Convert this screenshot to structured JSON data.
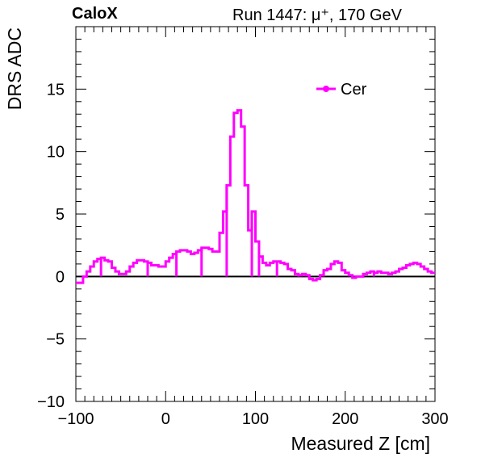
{
  "header": {
    "brand": "CaloX",
    "run_info": "Run 1447:   μ⁺, 170 GeV"
  },
  "chart_data": {
    "type": "line",
    "style": "step histogram",
    "xlabel": "Measured Z [cm]",
    "ylabel": "DRS ADC",
    "xlim": [
      -100,
      300
    ],
    "ylim": [
      -10,
      20
    ],
    "x_ticks": [
      -100,
      0,
      100,
      200,
      300
    ],
    "y_ticks": [
      -10,
      -5,
      0,
      5,
      10,
      15
    ],
    "grid": false,
    "legend_position": "top-right",
    "zero_line": true,
    "colors": {
      "series": "#ff00ff",
      "axis": "#000000",
      "zero_line": "#000000"
    },
    "series": [
      {
        "name": "Cer",
        "x": [
          -100,
          -96,
          -92,
          -88,
          -84,
          -80,
          -76,
          -72,
          -68,
          -64,
          -60,
          -56,
          -52,
          -48,
          -44,
          -40,
          -36,
          -32,
          -28,
          -24,
          -20,
          -16,
          -12,
          -8,
          -4,
          0,
          4,
          8,
          12,
          16,
          20,
          24,
          28,
          32,
          36,
          40,
          44,
          48,
          52,
          56,
          60,
          64,
          68,
          72,
          76,
          80,
          84,
          88,
          92,
          96,
          100,
          104,
          108,
          112,
          116,
          120,
          124,
          128,
          132,
          136,
          140,
          144,
          148,
          152,
          156,
          160,
          164,
          168,
          172,
          176,
          180,
          184,
          188,
          192,
          196,
          200,
          204,
          208,
          212,
          216,
          220,
          224,
          228,
          232,
          236,
          240,
          244,
          248,
          252,
          256,
          260,
          264,
          268,
          272,
          276,
          280,
          284,
          288,
          292,
          296
        ],
        "values": [
          -0.5,
          -0.5,
          0,
          0.4,
          0.8,
          1.2,
          1.4,
          1.5,
          1.3,
          1.2,
          0.7,
          0.4,
          0.2,
          0.2,
          0.4,
          0.8,
          1.1,
          1.3,
          1.3,
          1.2,
          1.1,
          0.9,
          0.9,
          0.8,
          0.8,
          1.2,
          1.5,
          1.8,
          2.0,
          2.1,
          2.1,
          2.0,
          1.8,
          1.9,
          2.1,
          2.3,
          2.3,
          2.2,
          2.0,
          2.0,
          3.5,
          5.2,
          7.3,
          11.2,
          13.1,
          13.3,
          12.0,
          7.3,
          3.7,
          5.2,
          2.8,
          1.6,
          1.1,
          0.9,
          1.1,
          1.2,
          1.2,
          1.1,
          1.0,
          0.6,
          0.5,
          0.2,
          0.1,
          0.2,
          0.1,
          -0.2,
          -0.3,
          -0.2,
          0.1,
          0.5,
          0.6,
          1.0,
          1.2,
          1.1,
          0.5,
          0.3,
          0.1,
          -0.1,
          0,
          0,
          0.2,
          0.3,
          0.4,
          0.3,
          0.4,
          0.3,
          0.3,
          0.2,
          0.3,
          0.4,
          0.6,
          0.7,
          0.9,
          1.0,
          1.1,
          1.0,
          0.8,
          0.6,
          0.4,
          0.3
        ],
        "gap_x": [
          -72,
          -20,
          12,
          40,
          68,
          96,
          104,
          124,
          148,
          176,
          232
        ]
      }
    ]
  }
}
